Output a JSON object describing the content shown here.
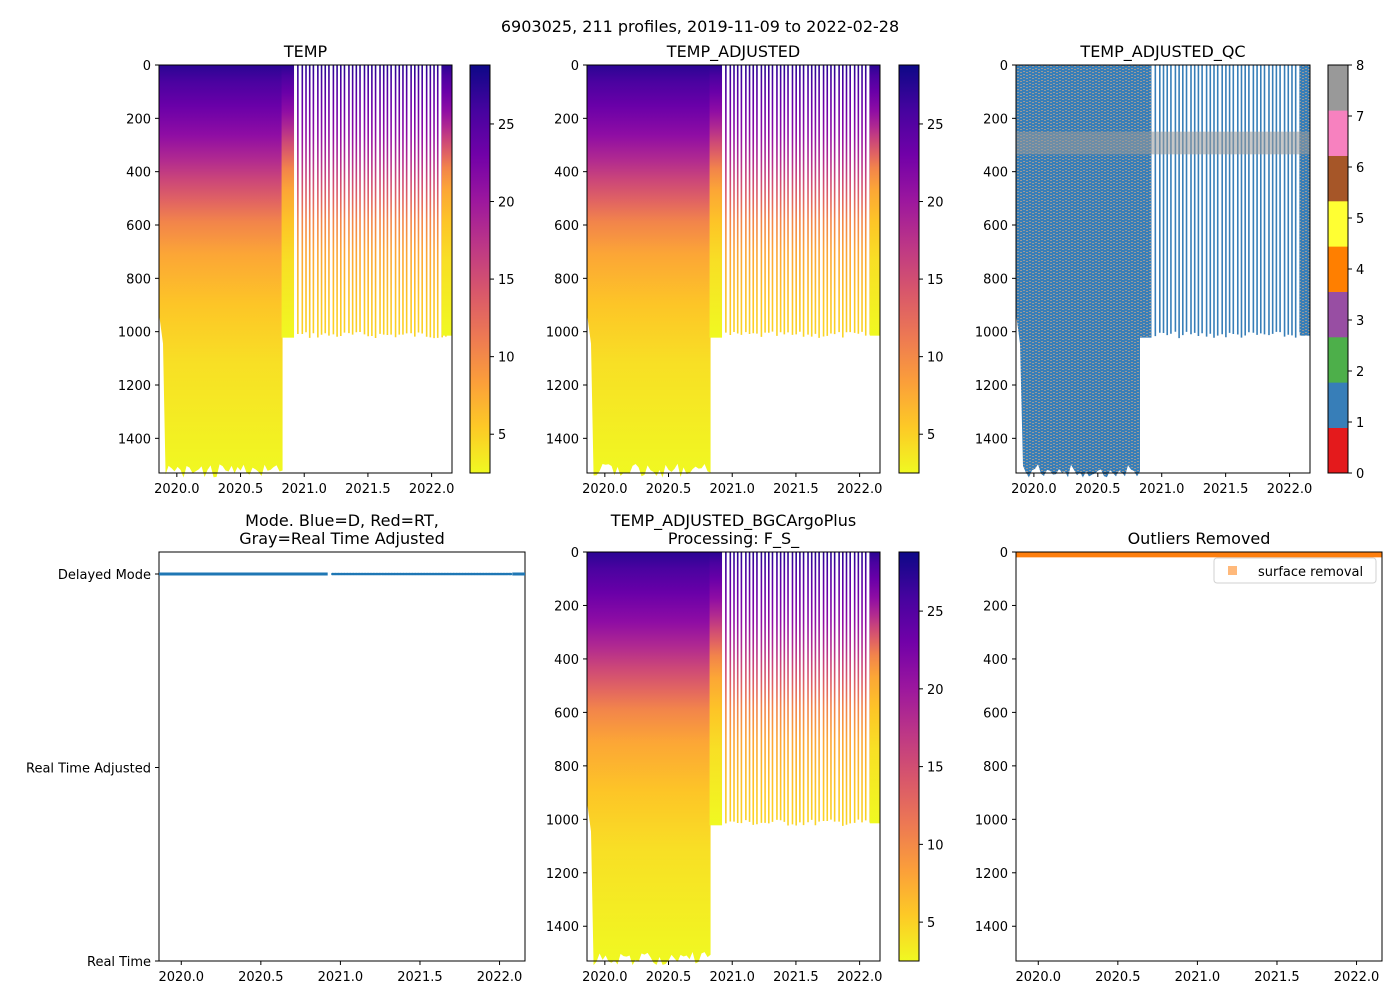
{
  "figure": {
    "suptitle": "6903025, 211 profiles, 2019-11-09 to 2022-02-28"
  },
  "colors": {
    "plasma": [
      "#0d0887",
      "#46039f",
      "#7201a8",
      "#9c179e",
      "#bd3786",
      "#d8576b",
      "#ed7953",
      "#fb9f3a",
      "#fdca26",
      "#f0f921"
    ],
    "qc": [
      "#e41a1c",
      "#377eb8",
      "#4daf4a",
      "#984ea3",
      "#ff7f00",
      "#ffff33",
      "#a65628",
      "#f781bf",
      "#999999"
    ],
    "mode_blue": "#1f77b4",
    "outlier_orange": "#ff7f0e"
  },
  "chart_data": [
    {
      "type": "heatmap",
      "title": "TEMP",
      "x_ticks": [
        "2020.0",
        "2020.5",
        "2021.0",
        "2021.5",
        "2022.0"
      ],
      "y_ticks": [
        "0",
        "200",
        "400",
        "600",
        "800",
        "1000",
        "1200",
        "1400"
      ],
      "xlim": [
        2019.86,
        2022.16
      ],
      "ylim": [
        1530,
        0
      ],
      "colorbar": {
        "min": 2.5,
        "max": 28.8,
        "ticks": [
          "5",
          "10",
          "15",
          "20",
          "25"
        ]
      },
      "notes": "Dense profiles 2019.86-2020.83 to ~1500 dbar; sparse profiles after to ~1000 dbar; continuous 2019.86-2020.92 above 1000 dbar"
    },
    {
      "type": "heatmap",
      "title": "TEMP_ADJUSTED",
      "x_ticks": [
        "2020.0",
        "2020.5",
        "2021.0",
        "2021.5",
        "2022.0"
      ],
      "y_ticks": [
        "0",
        "200",
        "400",
        "600",
        "800",
        "1000",
        "1200",
        "1400"
      ],
      "xlim": [
        2019.86,
        2022.16
      ],
      "ylim": [
        1530,
        0
      ],
      "colorbar": {
        "min": 2.5,
        "max": 28.8,
        "ticks": [
          "5",
          "10",
          "15",
          "20",
          "25"
        ]
      }
    },
    {
      "type": "heatmap",
      "title": "TEMP_ADJUSTED_QC",
      "x_ticks": [
        "2020.0",
        "2020.5",
        "2021.0",
        "2021.5",
        "2022.0"
      ],
      "y_ticks": [
        "0",
        "200",
        "400",
        "600",
        "800",
        "1000",
        "1200",
        "1400"
      ],
      "xlim": [
        2019.86,
        2022.16
      ],
      "ylim": [
        1530,
        0
      ],
      "colorbar": {
        "min": 0,
        "max": 8,
        "ticks": [
          "0",
          "1",
          "2",
          "3",
          "4",
          "5",
          "6",
          "7",
          "8"
        ],
        "discrete": true
      },
      "notes": "Mostly QC 1 (blue) mixed with QC 8 (gray); gray band ~250-330 dbar"
    },
    {
      "type": "scatter",
      "title": "Mode. Blue=D, Red=RT,\nGray=Real Time Adjusted",
      "x_ticks": [
        "2020.0",
        "2020.5",
        "2021.0",
        "2021.5",
        "2022.0"
      ],
      "y_categories": [
        "Real Time",
        "Real Time Adjusted",
        "Delayed Mode"
      ],
      "xlim": [
        2019.86,
        2022.16
      ],
      "series": [
        {
          "name": "Delayed Mode",
          "y": "Delayed Mode",
          "x_range": [
            2019.86,
            2022.14
          ]
        }
      ]
    },
    {
      "type": "heatmap",
      "title": "TEMP_ADJUSTED_BGCArgoPlus\nProcessing: F_S_",
      "x_ticks": [
        "2020.0",
        "2020.5",
        "2021.0",
        "2021.5",
        "2022.0"
      ],
      "y_ticks": [
        "0",
        "200",
        "400",
        "600",
        "800",
        "1000",
        "1200",
        "1400"
      ],
      "xlim": [
        2019.86,
        2022.16
      ],
      "ylim": [
        1530,
        0
      ],
      "colorbar": {
        "min": 2.5,
        "max": 28.8,
        "ticks": [
          "5",
          "10",
          "15",
          "20",
          "25"
        ]
      }
    },
    {
      "type": "scatter",
      "title": "Outliers Removed",
      "x_ticks": [
        "2020.0",
        "2020.5",
        "2021.0",
        "2021.5",
        "2022.0"
      ],
      "y_ticks": [
        "0",
        "200",
        "400",
        "600",
        "800",
        "1000",
        "1200",
        "1400"
      ],
      "xlim": [
        2019.86,
        2022.16
      ],
      "ylim": [
        1530,
        0
      ],
      "series": [
        {
          "name": "surface removal",
          "depth_range": [
            0,
            20
          ],
          "x_range": [
            2019.86,
            2022.16
          ]
        }
      ],
      "legend": {
        "label": "surface removal",
        "placement": "top-right"
      }
    }
  ]
}
